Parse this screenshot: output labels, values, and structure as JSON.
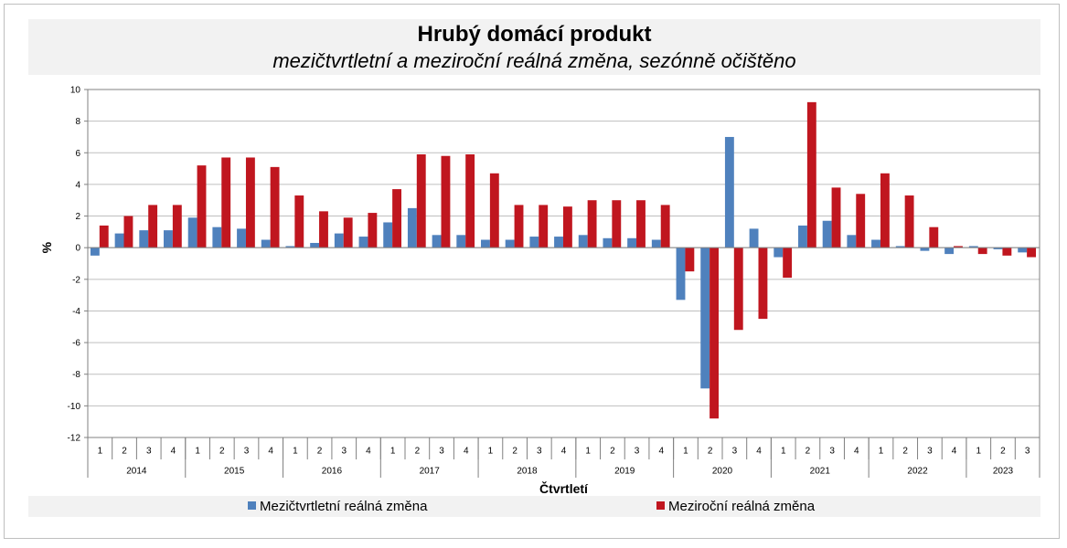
{
  "chart_data": {
    "type": "bar",
    "title": "Hrubý domácí produkt",
    "subtitle": "mezičtvrtletní a meziroční reálná změna, sezónně očištěno",
    "xlabel": "Čtvrtletí",
    "ylabel": "%",
    "ylim": [
      -12,
      10
    ],
    "yticks": [
      10,
      8,
      6,
      4,
      2,
      0,
      -2,
      -4,
      -6,
      -8,
      -10,
      -12
    ],
    "grid": true,
    "legend_position": "bottom",
    "years": [
      "2014",
      "2015",
      "2016",
      "2017",
      "2018",
      "2019",
      "2020",
      "2021",
      "2022",
      "2023"
    ],
    "categories": [
      "1",
      "2",
      "3",
      "4",
      "1",
      "2",
      "3",
      "4",
      "1",
      "2",
      "3",
      "4",
      "1",
      "2",
      "3",
      "4",
      "1",
      "2",
      "3",
      "4",
      "1",
      "2",
      "3",
      "4",
      "1",
      "2",
      "3",
      "4",
      "1",
      "2",
      "3",
      "4",
      "1",
      "2",
      "3",
      "4",
      "1",
      "2",
      "3"
    ],
    "category_years": [
      "2014",
      "2014",
      "2014",
      "2014",
      "2015",
      "2015",
      "2015",
      "2015",
      "2016",
      "2016",
      "2016",
      "2016",
      "2017",
      "2017",
      "2017",
      "2017",
      "2018",
      "2018",
      "2018",
      "2018",
      "2019",
      "2019",
      "2019",
      "2019",
      "2020",
      "2020",
      "2020",
      "2020",
      "2021",
      "2021",
      "2021",
      "2021",
      "2022",
      "2022",
      "2022",
      "2022",
      "2023",
      "2023",
      "2023"
    ],
    "series": [
      {
        "name": "Mezičtvrtletní reálná změna",
        "color": "#4f81bd",
        "values": [
          -0.5,
          0.9,
          1.1,
          1.1,
          1.9,
          1.3,
          1.2,
          0.5,
          0.1,
          0.3,
          0.9,
          0.7,
          1.6,
          2.5,
          0.8,
          0.8,
          0.5,
          0.5,
          0.7,
          0.7,
          0.8,
          0.6,
          0.6,
          0.5,
          -3.3,
          -8.9,
          7.0,
          1.2,
          -0.6,
          1.4,
          1.7,
          0.8,
          0.5,
          0.1,
          -0.2,
          -0.4,
          0.1,
          -0.1,
          -0.3
        ]
      },
      {
        "name": "Meziroční reálná změna",
        "color": "#c0161f",
        "values": [
          1.4,
          2.0,
          2.7,
          2.7,
          5.2,
          5.7,
          5.7,
          5.1,
          3.3,
          2.3,
          1.9,
          2.2,
          3.7,
          5.9,
          5.8,
          5.9,
          4.7,
          2.7,
          2.7,
          2.6,
          3.0,
          3.0,
          3.0,
          2.7,
          -1.5,
          -10.8,
          -5.2,
          -4.5,
          -1.9,
          9.2,
          3.8,
          3.4,
          4.7,
          3.3,
          1.3,
          0.1,
          -0.4,
          -0.5,
          -0.6
        ]
      }
    ]
  }
}
